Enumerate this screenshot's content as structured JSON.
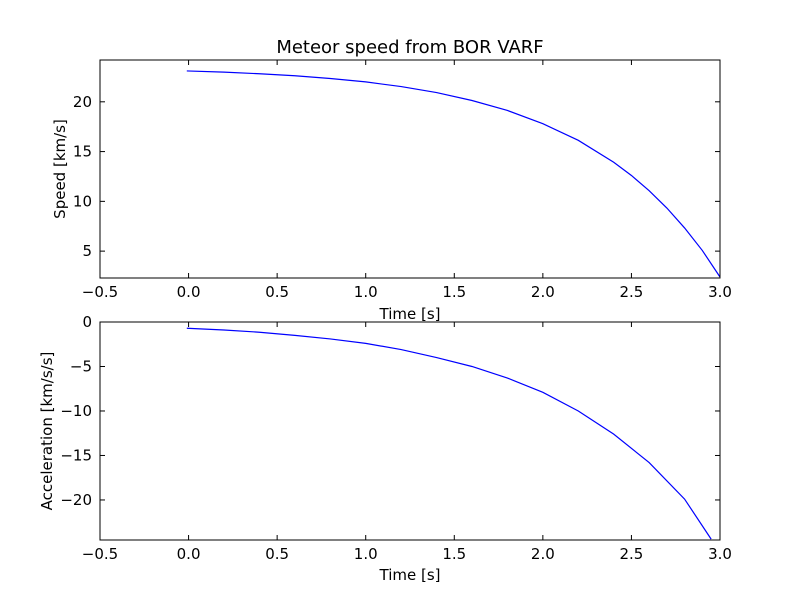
{
  "figure": {
    "background": "#ffffff",
    "line_color": "#0000ff"
  },
  "chart_data": [
    {
      "type": "line",
      "title": "Meteor speed from  BOR VARF",
      "xlabel": "Time [s]",
      "ylabel": "Speed [km/s]",
      "xlim": [
        -0.5,
        3.0
      ],
      "ylim": [
        2.3,
        24.2
      ],
      "xticks": [
        -0.5,
        0.0,
        0.5,
        1.0,
        1.5,
        2.0,
        2.5,
        3.0
      ],
      "xtick_labels": [
        "−0.5",
        "0.0",
        "0.5",
        "1.0",
        "1.5",
        "2.0",
        "2.5",
        "3.0"
      ],
      "yticks": [
        5,
        10,
        15,
        20
      ],
      "ytick_labels": [
        "5",
        "10",
        "15",
        "20"
      ],
      "grid": false,
      "series": [
        {
          "color": "#0000ff",
          "x": [
            -0.01,
            0.2,
            0.4,
            0.6,
            0.8,
            1.0,
            1.2,
            1.4,
            1.6,
            1.8,
            2.0,
            2.2,
            2.4,
            2.5,
            2.6,
            2.7,
            2.8,
            2.9,
            3.0
          ],
          "y": [
            23.1,
            22.98,
            22.82,
            22.62,
            22.34,
            22.0,
            21.53,
            20.93,
            20.13,
            19.13,
            17.8,
            16.13,
            13.93,
            12.6,
            11.07,
            9.33,
            7.33,
            5.07,
            2.4
          ]
        }
      ]
    },
    {
      "type": "line",
      "title": "",
      "xlabel": "Time [s]",
      "ylabel": "Acceleration [km/s/s]",
      "xlim": [
        -0.5,
        3.0
      ],
      "ylim": [
        -24.5,
        0
      ],
      "xticks": [
        -0.5,
        0.0,
        0.5,
        1.0,
        1.5,
        2.0,
        2.5,
        3.0
      ],
      "xtick_labels": [
        "−0.5",
        "0.0",
        "0.5",
        "1.0",
        "1.5",
        "2.0",
        "2.5",
        "3.0"
      ],
      "yticks": [
        0,
        -5,
        -10,
        -15,
        -20
      ],
      "ytick_labels": [
        "0",
        "−5",
        "−10",
        "−15",
        "−20"
      ],
      "grid": false,
      "series": [
        {
          "color": "#0000ff",
          "x": [
            -0.01,
            0.2,
            0.4,
            0.6,
            0.8,
            1.0,
            1.2,
            1.4,
            1.6,
            1.8,
            2.0,
            2.2,
            2.4,
            2.6,
            2.8,
            2.95
          ],
          "y": [
            -0.7,
            -0.9,
            -1.15,
            -1.5,
            -1.9,
            -2.4,
            -3.1,
            -4.0,
            -5.0,
            -6.3,
            -7.9,
            -10.0,
            -12.6,
            -15.8,
            -19.9,
            -24.4
          ]
        }
      ]
    }
  ]
}
